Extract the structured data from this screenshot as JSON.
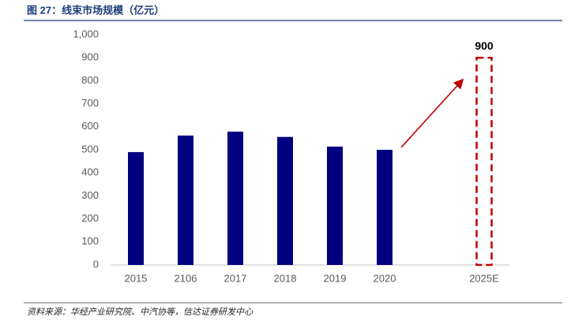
{
  "chart_data": {
    "type": "bar",
    "title": "图 27：线束市场规模（亿元）",
    "source": "资料来源：华经产业研究院、中汽协等，信达证券研发中心",
    "categories": [
      "2015",
      "2106",
      "2017",
      "2018",
      "2019",
      "2020",
      null,
      "2025E"
    ],
    "series": [
      {
        "color": "#000080",
        "style": "solid",
        "values": [
          490,
          562,
          579,
          556,
          514,
          500,
          null,
          null
        ]
      },
      {
        "color": "#c00000",
        "style": "dashed",
        "data_labels": true,
        "values": [
          null,
          null,
          null,
          null,
          null,
          null,
          null,
          900
        ]
      }
    ],
    "ylim": [
      0,
      1000
    ],
    "yticks": [
      0,
      100,
      200,
      300,
      400,
      500,
      600,
      700,
      800,
      900,
      {
        "value": 1000,
        "label": "1,000"
      }
    ],
    "grid": false
  }
}
